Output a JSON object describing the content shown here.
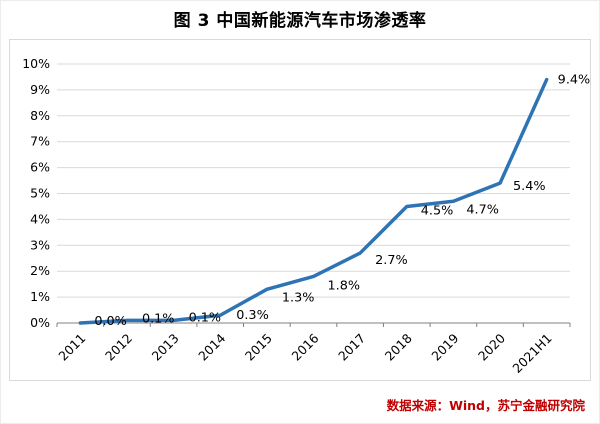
{
  "chart_data": {
    "type": "line",
    "title": "图 3 中国新能源汽车市场渗透率",
    "categories": [
      "2011",
      "2012",
      "2013",
      "2014",
      "2015",
      "2016",
      "2017",
      "2018",
      "2019",
      "2020",
      "2021H1"
    ],
    "values": [
      0.0,
      0.1,
      0.1,
      0.3,
      1.3,
      1.8,
      2.7,
      4.5,
      4.7,
      5.4,
      9.4
    ],
    "labels": [
      "0.0%",
      "0.1%",
      "0.1%",
      "0.3%",
      "1.3%",
      "1.8%",
      "2.7%",
      "4.5%",
      "4.7%",
      "5.4%",
      "9.4%"
    ],
    "xlabel": "",
    "ylabel": "",
    "ylim": [
      0,
      10
    ],
    "ytick_step": 1,
    "ytick_labels": [
      "0%",
      "1%",
      "2%",
      "3%",
      "4%",
      "5%",
      "6%",
      "7%",
      "8%",
      "9%",
      "10%"
    ],
    "grid": true,
    "legend_position": "none",
    "line_color": "#2e74b5",
    "grid_color": "#d9d9d9",
    "axis_color": "#808080",
    "label_color": "#000000",
    "source": "数据来源：Wind，苏宁金融研究院",
    "source_color": "#c00000"
  }
}
